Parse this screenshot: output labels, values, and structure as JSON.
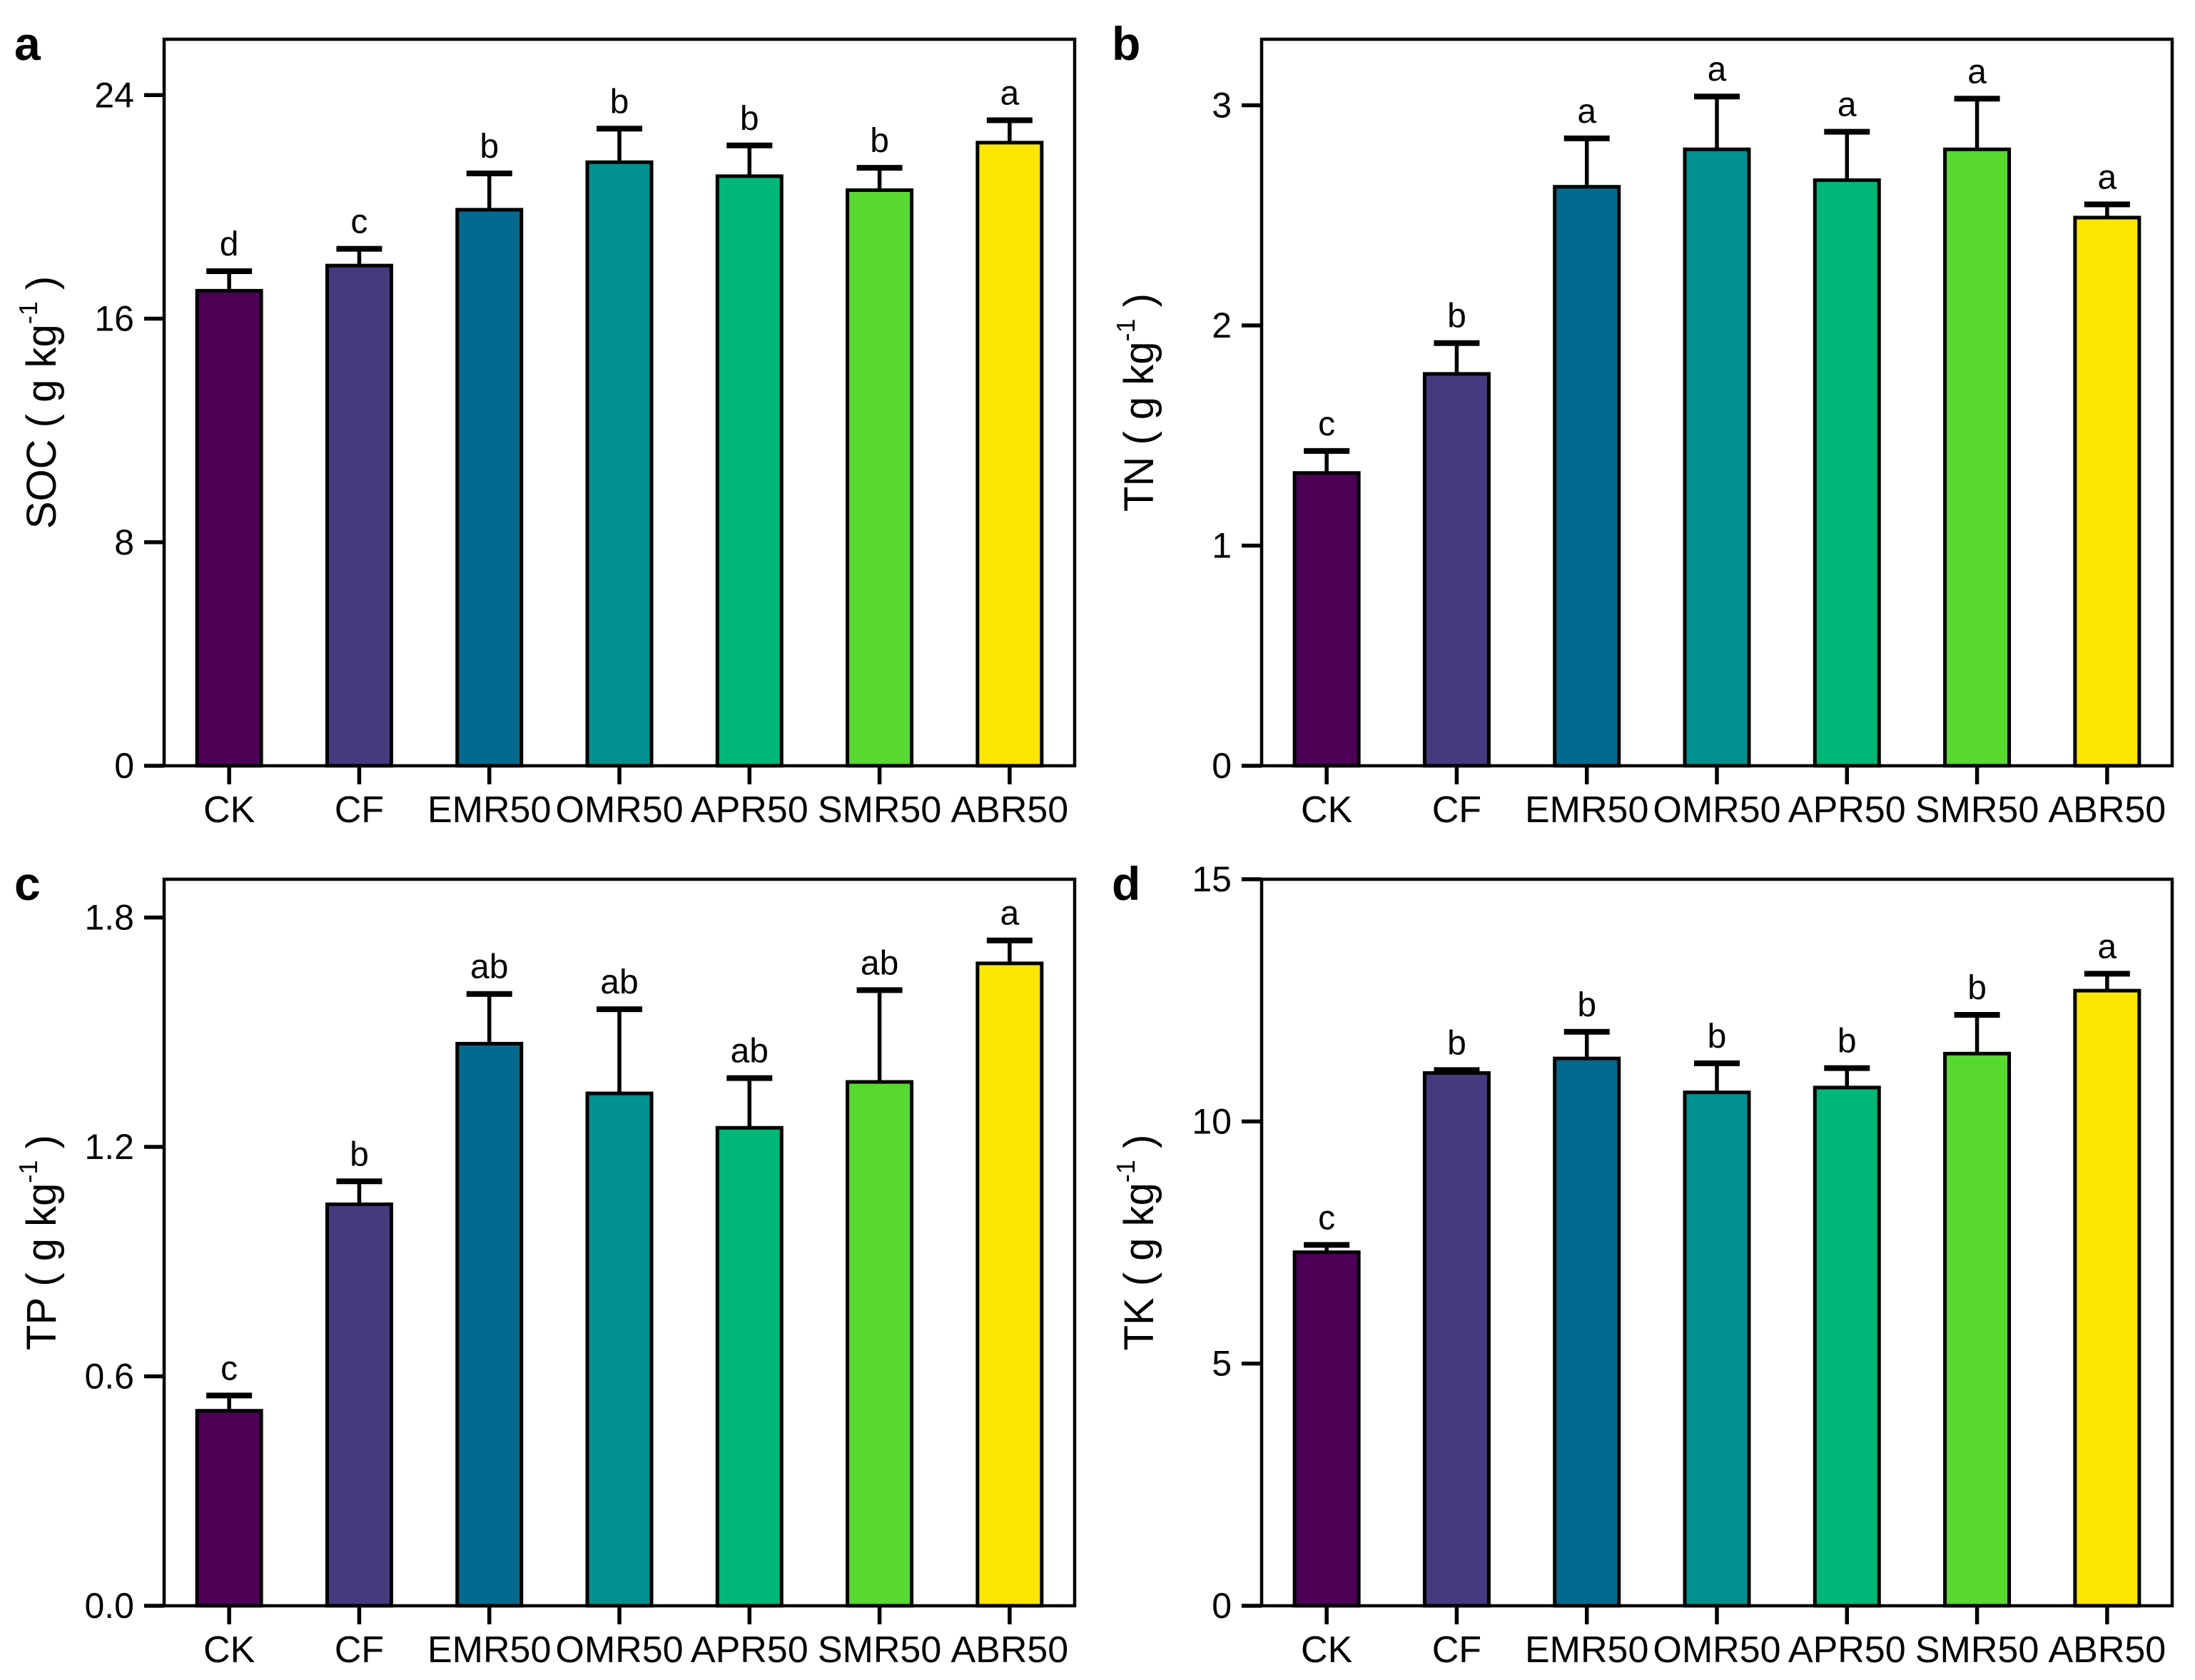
{
  "figure": {
    "background": "#ffffff",
    "text_color": "#000000",
    "axis_color": "#000000"
  },
  "chart_data": {
    "type": "bar",
    "categories": [
      "CK",
      "CF",
      "EMR50",
      "OMR50",
      "APR50",
      "SMR50",
      "ABR50"
    ],
    "bar_colors": [
      "#4C0156",
      "#453A7E",
      "#026A8E",
      "#00918E",
      "#00B778",
      "#58D831",
      "#FBE601"
    ],
    "bar_outline_color": "#000000",
    "error_bars": "upper standard deviation with cap",
    "legend": "none",
    "grid": false,
    "panels": [
      {
        "label": "a",
        "ylabel_prefix": "SOC ( g kg",
        "ylabel_sup": "-1",
        "ylabel_suffix": " )",
        "ylim": [
          0,
          26
        ],
        "yticks": [
          0,
          8,
          16,
          24
        ],
        "ytick_labels": [
          "0",
          "8",
          "16",
          "24"
        ],
        "values": [
          17.0,
          17.9,
          19.9,
          21.6,
          21.1,
          20.6,
          22.3
        ],
        "errors": [
          0.7,
          0.6,
          1.3,
          1.2,
          1.1,
          0.8,
          0.8
        ],
        "sig_letters": [
          "d",
          "c",
          "b",
          "b",
          "b",
          "b",
          "a"
        ]
      },
      {
        "label": "b",
        "ylabel_prefix": "TN ( g kg",
        "ylabel_sup": "-1",
        "ylabel_suffix": " )",
        "ylim": [
          0,
          3.3
        ],
        "yticks": [
          0,
          1,
          2,
          3
        ],
        "ytick_labels": [
          "0",
          "1",
          "2",
          "3"
        ],
        "values": [
          1.33,
          1.78,
          2.63,
          2.8,
          2.66,
          2.8,
          2.49
        ],
        "errors": [
          0.1,
          0.14,
          0.22,
          0.24,
          0.22,
          0.23,
          0.06
        ],
        "sig_letters": [
          "c",
          "b",
          "a",
          "a",
          "a",
          "a",
          "a"
        ]
      },
      {
        "label": "c",
        "ylabel_prefix": "TP ( g kg",
        "ylabel_sup": "-1",
        "ylabel_suffix": " )",
        "ylim": [
          0,
          1.9
        ],
        "yticks": [
          0,
          0.6,
          1.2,
          1.8
        ],
        "ytick_labels": [
          "0.0",
          "0.6",
          "1.2",
          "1.8"
        ],
        "values": [
          0.51,
          1.05,
          1.47,
          1.34,
          1.25,
          1.37,
          1.68
        ],
        "errors": [
          0.04,
          0.06,
          0.13,
          0.22,
          0.13,
          0.24,
          0.06
        ],
        "sig_letters": [
          "c",
          "b",
          "ab",
          "ab",
          "ab",
          "ab",
          "a"
        ]
      },
      {
        "label": "d",
        "ylabel_prefix": "TK ( g kg",
        "ylabel_sup": "-1",
        "ylabel_suffix": " )",
        "ylim": [
          0,
          15
        ],
        "yticks": [
          0,
          5,
          10,
          15
        ],
        "ytick_labels": [
          "0",
          "5",
          "10",
          "15"
        ],
        "values": [
          7.3,
          11.0,
          11.3,
          10.6,
          10.7,
          11.4,
          12.7
        ],
        "errors": [
          0.15,
          0.06,
          0.55,
          0.6,
          0.4,
          0.8,
          0.35
        ],
        "sig_letters": [
          "c",
          "b",
          "b",
          "b",
          "b",
          "b",
          "a"
        ]
      }
    ]
  }
}
